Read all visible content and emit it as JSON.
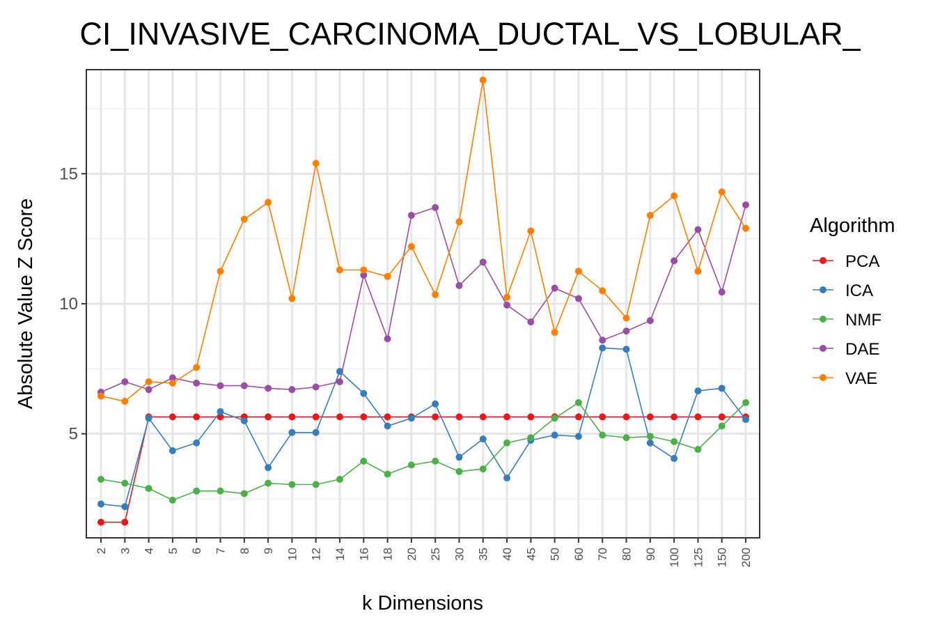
{
  "chart_data": {
    "type": "line",
    "title": "CI_INVASIVE_CARCINOMA_DUCTAL_VS_LOBULAR_",
    "xlabel": "k Dimensions",
    "ylabel": "Absolute Value Z Score",
    "categories": [
      "2",
      "3",
      "4",
      "5",
      "6",
      "7",
      "8",
      "9",
      "10",
      "12",
      "14",
      "16",
      "18",
      "20",
      "25",
      "30",
      "35",
      "40",
      "45",
      "50",
      "60",
      "70",
      "80",
      "90",
      "100",
      "125",
      "150",
      "200"
    ],
    "yticks": [
      5,
      10,
      15
    ],
    "ylim": [
      1.0,
      19.0
    ],
    "grid": true,
    "legend": {
      "title": "Algorithm",
      "placement": "right"
    },
    "series": [
      {
        "name": "PCA",
        "color": "#e41a1c",
        "values": [
          1.6,
          1.6,
          5.65,
          5.65,
          5.65,
          5.65,
          5.65,
          5.65,
          5.65,
          5.65,
          5.65,
          5.65,
          5.65,
          5.65,
          5.65,
          5.65,
          5.65,
          5.65,
          5.65,
          5.65,
          5.65,
          5.65,
          5.65,
          5.65,
          5.65,
          5.65,
          5.65,
          5.65
        ]
      },
      {
        "name": "ICA",
        "color": "#377eb8",
        "values": [
          2.3,
          2.2,
          5.6,
          4.35,
          4.65,
          5.85,
          5.5,
          3.7,
          5.05,
          5.05,
          7.4,
          6.55,
          5.3,
          5.6,
          6.15,
          4.1,
          4.8,
          3.3,
          4.75,
          4.95,
          4.9,
          8.3,
          8.25,
          4.65,
          4.05,
          6.65,
          6.75,
          5.55
        ]
      },
      {
        "name": "NMF",
        "color": "#4daf4a",
        "values": [
          3.25,
          3.1,
          2.9,
          2.45,
          2.8,
          2.8,
          2.7,
          3.1,
          3.05,
          3.05,
          3.25,
          3.95,
          3.45,
          3.8,
          3.95,
          3.55,
          3.65,
          4.65,
          4.85,
          5.6,
          6.2,
          4.95,
          4.85,
          4.9,
          4.7,
          4.4,
          5.3,
          6.2
        ]
      },
      {
        "name": "DAE",
        "color": "#984ea3",
        "values": [
          6.6,
          7.0,
          6.7,
          7.15,
          6.95,
          6.85,
          6.85,
          6.75,
          6.7,
          6.8,
          7.0,
          11.1,
          8.65,
          13.4,
          13.7,
          10.7,
          11.6,
          9.95,
          9.3,
          10.6,
          10.2,
          8.6,
          8.95,
          9.35,
          11.65,
          12.85,
          10.45,
          13.8
        ]
      },
      {
        "name": "VAE",
        "color": "#ff7f00",
        "values": [
          6.45,
          6.25,
          7.0,
          6.95,
          7.55,
          11.25,
          13.25,
          13.9,
          10.2,
          15.4,
          11.3,
          11.3,
          11.05,
          12.2,
          10.35,
          13.15,
          18.6,
          10.25,
          12.8,
          8.9,
          11.25,
          10.5,
          9.45,
          13.4,
          14.15,
          11.25,
          14.3,
          12.9
        ]
      }
    ]
  }
}
